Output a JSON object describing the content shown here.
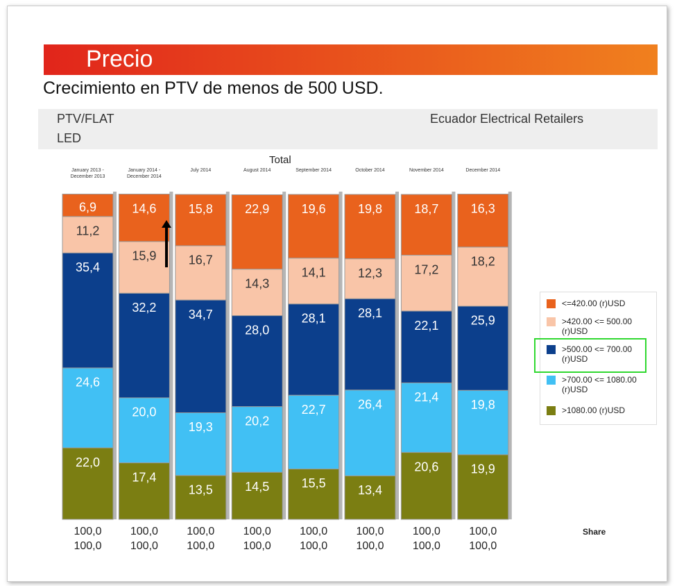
{
  "header": {
    "title": "Precio",
    "subtitle": "Crecimiento en PTV de menos de 500 USD.",
    "left_line1": "PTV/FLAT",
    "left_line2": "LED",
    "right": "Ecuador Electrical Retailers"
  },
  "chart_data": {
    "type": "stacked_bar",
    "title": "Total",
    "categories": [
      "January 2013 - December 2013",
      "January 2014 - December 2014",
      "July 2014",
      "August 2014",
      "September 2014",
      "October 2014",
      "November 2014",
      "December 2014"
    ],
    "ylim": [
      0,
      100
    ],
    "series": [
      {
        "name": ">1080.00 (r)USD",
        "color": "#7b7e12",
        "values": [
          22.0,
          17.4,
          13.5,
          14.5,
          15.5,
          13.4,
          20.6,
          19.9
        ],
        "value_labels": [
          "22,0",
          "17,4",
          "13,5",
          "14,5",
          "15,5",
          "13,4",
          "20,6",
          "19,9"
        ]
      },
      {
        "name": ">700.00 <= 1080.00 (r)USD",
        "color": "#41c0f4",
        "values": [
          24.6,
          20.0,
          19.3,
          20.2,
          22.7,
          26.4,
          21.4,
          19.8
        ],
        "value_labels": [
          "24,6",
          "20,0",
          "19,3",
          "20,2",
          "22,7",
          "26,4",
          "21,4",
          "19,8"
        ]
      },
      {
        "name": ">500.00 <= 700.00 (r)USD",
        "color": "#0c3f8c",
        "values": [
          35.4,
          32.2,
          34.7,
          28.0,
          28.1,
          28.1,
          22.1,
          25.9
        ],
        "value_labels": [
          "35,4",
          "32,2",
          "34,7",
          "28,0",
          "28,1",
          "28,1",
          "22,1",
          "25,9"
        ]
      },
      {
        "name": ">420.00 <= 500.00 (r)USD",
        "color": "#f9c5a8",
        "values": [
          11.2,
          15.9,
          16.7,
          14.3,
          14.1,
          12.3,
          17.2,
          18.2
        ],
        "value_labels": [
          "11,2",
          "15,9",
          "16,7",
          "14,3",
          "14,1",
          "12,3",
          "17,2",
          "18,2"
        ]
      },
      {
        "name": "<=420.00 (r)USD",
        "color": "#e9621d",
        "values": [
          6.9,
          14.6,
          15.8,
          22.9,
          19.6,
          19.8,
          18.7,
          16.3
        ],
        "value_labels": [
          "6,9",
          "14,6",
          "15,8",
          "22,9",
          "19,6",
          "19,8",
          "18,7",
          "16,3"
        ]
      }
    ],
    "totals": [
      {
        "values": [
          100,
          100,
          100,
          100,
          100,
          100,
          100,
          100
        ],
        "value_labels": [
          "100,0",
          "100,0",
          "100,0",
          "100,0",
          "100,0",
          "100,0",
          "100,0",
          "100,0"
        ]
      },
      {
        "values": [
          100,
          100,
          100,
          100,
          100,
          100,
          100,
          100
        ],
        "value_labels": [
          "100,0",
          "100,0",
          "100,0",
          "100,0",
          "100,0",
          "100,0",
          "100,0",
          "100,0"
        ]
      }
    ],
    "totals_label": "Share"
  }
}
